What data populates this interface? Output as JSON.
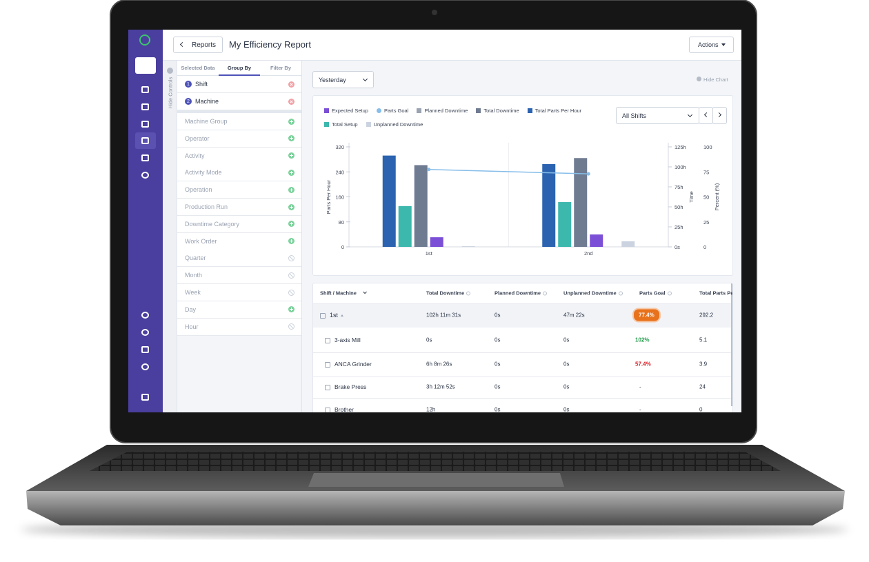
{
  "header": {
    "back": "Reports",
    "title": "My Efficiency Report",
    "actions": "Actions"
  },
  "controls": {
    "hide": "Hide Controls",
    "tabs": [
      "Selected Data",
      "Group By",
      "Filter By"
    ],
    "selected": [
      {
        "number": "1",
        "label": "Shift"
      },
      {
        "number": "2",
        "label": "Machine"
      }
    ],
    "options": [
      {
        "label": "Machine Group",
        "available": true
      },
      {
        "label": "Operator",
        "available": true
      },
      {
        "label": "Activity",
        "available": true
      },
      {
        "label": "Activity Mode",
        "available": true
      },
      {
        "label": "Operation",
        "available": true
      },
      {
        "label": "Production Run",
        "available": true
      },
      {
        "label": "Downtime Category",
        "available": true
      },
      {
        "label": "Work Order",
        "available": true
      },
      {
        "label": "Quarter",
        "available": false
      },
      {
        "label": "Month",
        "available": false
      },
      {
        "label": "Week",
        "available": false
      },
      {
        "label": "Day",
        "available": true
      },
      {
        "label": "Hour",
        "available": false
      }
    ]
  },
  "toolbar": {
    "date_range": "Yesterday",
    "hide_chart": "Hide Chart",
    "shift_filter": "All Shifts"
  },
  "chart_data": {
    "type": "bar",
    "categories": [
      "1st",
      "2nd"
    ],
    "y_label": "Parts Per Hour",
    "y2_label": "Time",
    "y3_label": "Percent (%)",
    "ylim": [
      0,
      320
    ],
    "yticks": [
      0,
      80,
      160,
      240,
      320
    ],
    "y2lim": [
      0,
      125
    ],
    "y2ticks": [
      {
        "value": 0,
        "label": "0s"
      },
      {
        "value": 25,
        "label": "25h"
      },
      {
        "value": 50,
        "label": "50h"
      },
      {
        "value": 75,
        "label": "75h"
      },
      {
        "value": 100,
        "label": "100h"
      },
      {
        "value": 125,
        "label": "125h"
      }
    ],
    "y3lim": [
      0,
      100
    ],
    "y3ticks": [
      0,
      25,
      50,
      75,
      100
    ],
    "series": [
      {
        "name": "Expected Setup",
        "color": "#7b4fd6",
        "axis": "y2",
        "values": [
          12,
          15.5
        ]
      },
      {
        "name": "Parts Goal",
        "color": "#86bde9",
        "axis": "y3",
        "type": "line",
        "values": [
          77.4,
          73
        ]
      },
      {
        "name": "Planned Downtime",
        "color": "#9aa3b2",
        "axis": "y2",
        "values": [
          0,
          0
        ]
      },
      {
        "name": "Total Downtime",
        "color": "#6f7b91",
        "axis": "y2",
        "values": [
          102.19,
          111
        ]
      },
      {
        "name": "Total Parts Per Hour",
        "color": "#2b63b0",
        "values": [
          292.2,
          265
        ]
      },
      {
        "name": "Total Setup",
        "color": "#3cb8ad",
        "axis": "y2",
        "values": [
          51,
          56
        ]
      },
      {
        "name": "Unplanned Downtime",
        "color": "#cbd3e0",
        "axis": "y2",
        "values": [
          0.79,
          7
        ]
      }
    ]
  },
  "table": {
    "columns": [
      "Shift / Machine",
      "Total Downtime",
      "Planned Downtime",
      "Unplanned Downtime",
      "Parts Goal",
      "Total Parts Per"
    ],
    "rows": [
      [
        "1st",
        "102h 11m 31s",
        "0s",
        "47m 22s",
        "77.4%",
        "292.2"
      ],
      [
        "3-axis Mill",
        "0s",
        "0s",
        "0s",
        "102%",
        "5.1"
      ],
      [
        "ANCA Grinder",
        "6h 8m 26s",
        "0s",
        "0s",
        "57.4%",
        "3.9"
      ],
      [
        "Brake Press",
        "3h 12m 52s",
        "0s",
        "0s",
        "-",
        "24"
      ],
      [
        "Brother",
        "12h",
        "0s",
        "0s",
        "-",
        "0"
      ]
    ]
  }
}
